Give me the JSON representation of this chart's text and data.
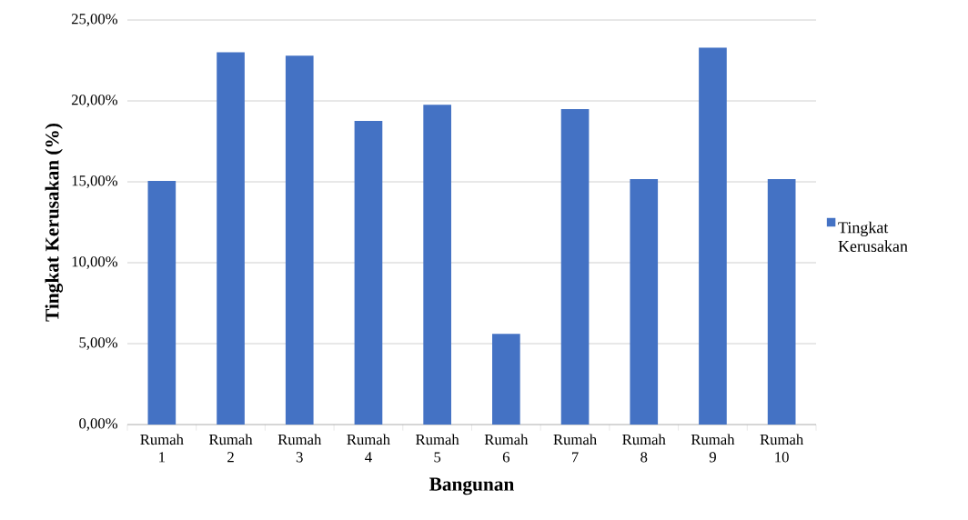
{
  "chart_data": {
    "type": "bar",
    "xlabel": "Bangunan",
    "ylabel": "Tingkat Kerusakan  (%)",
    "categories": [
      "Rumah 1",
      "Rumah 2",
      "Rumah 3",
      "Rumah 4",
      "Rumah 5",
      "Rumah 6",
      "Rumah 7",
      "Rumah 8",
      "Rumah 9",
      "Rumah 10"
    ],
    "series": [
      {
        "name": "Tingkat Kerusakan",
        "color": "#4472c4",
        "values": [
          15.05,
          23.0,
          22.8,
          18.76,
          19.76,
          5.6,
          19.5,
          15.17,
          23.3,
          15.17
        ]
      }
    ],
    "ylim": [
      0,
      25
    ],
    "yticks": [
      {
        "value": 0,
        "label": "0,00%"
      },
      {
        "value": 5,
        "label": "5,00%"
      },
      {
        "value": 10,
        "label": "10,00%"
      },
      {
        "value": 15,
        "label": "15,00%"
      },
      {
        "value": 20,
        "label": "20,00%"
      },
      {
        "value": 25,
        "label": "25,00%"
      }
    ],
    "grid": "y",
    "legend": "right"
  }
}
